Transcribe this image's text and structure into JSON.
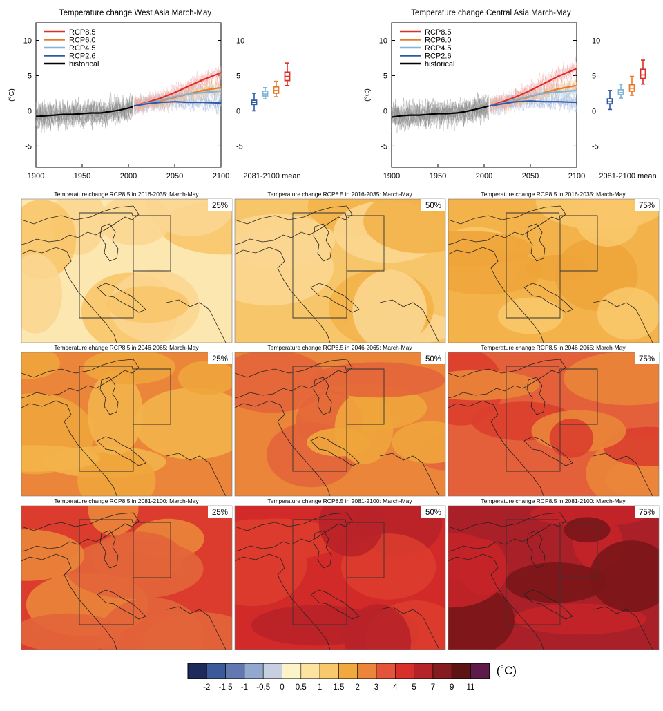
{
  "chart_data": [
    {
      "type": "line",
      "title": "Temperature change West Asia March-May",
      "ylabel": "(°C)",
      "xlim": [
        1900,
        2100
      ],
      "ylim": [
        -8,
        12.5
      ],
      "xticks": [
        "1900",
        "1950",
        "2000",
        "2050",
        "2100"
      ],
      "yticks": [
        "-5",
        "0",
        "5",
        "10"
      ],
      "legend": "top-left",
      "series": [
        {
          "name": "RCP8.5",
          "color": "#dc2d27",
          "x": [
            2006,
            2020,
            2035,
            2050,
            2065,
            2080,
            2100
          ],
          "values": [
            0.7,
            1.2,
            1.8,
            2.6,
            3.5,
            4.4,
            5.4
          ]
        },
        {
          "name": "RCP6.0",
          "color": "#e87b2a",
          "x": [
            2006,
            2020,
            2035,
            2050,
            2065,
            2080,
            2100
          ],
          "values": [
            0.7,
            1.0,
            1.4,
            1.9,
            2.4,
            2.9,
            3.3
          ]
        },
        {
          "name": "RCP4.5",
          "color": "#7eb3d9",
          "x": [
            2006,
            2020,
            2035,
            2050,
            2065,
            2080,
            2100
          ],
          "values": [
            0.7,
            1.1,
            1.5,
            2.0,
            2.4,
            2.6,
            2.8
          ]
        },
        {
          "name": "RCP2.6",
          "color": "#2e5aa6",
          "x": [
            2006,
            2020,
            2035,
            2050,
            2065,
            2080,
            2100
          ],
          "values": [
            0.7,
            1.0,
            1.2,
            1.3,
            1.2,
            1.2,
            1.1
          ]
        },
        {
          "name": "historical",
          "color": "#000000",
          "x": [
            1900,
            1910,
            1920,
            1930,
            1940,
            1950,
            1960,
            1970,
            1980,
            1990,
            2000,
            2005
          ],
          "values": [
            -0.8,
            -0.7,
            -0.6,
            -0.5,
            -0.5,
            -0.4,
            -0.3,
            -0.3,
            -0.1,
            0.1,
            0.4,
            0.6
          ]
        }
      ],
      "boxplot": {
        "label": "2081-2100 mean",
        "boxes": [
          {
            "name": "RCP2.6",
            "color": "#2e5aa6",
            "min": 0.0,
            "q1": 0.9,
            "median": 1.2,
            "q3": 1.5,
            "max": 2.5
          },
          {
            "name": "RCP4.5",
            "color": "#7eb3d9",
            "min": 1.7,
            "q1": 2.1,
            "median": 2.4,
            "q3": 2.8,
            "max": 3.3
          },
          {
            "name": "RCP6.0",
            "color": "#e87b2a",
            "min": 2.0,
            "q1": 2.5,
            "median": 2.9,
            "q3": 3.4,
            "max": 4.2
          },
          {
            "name": "RCP8.5",
            "color": "#dc2d27",
            "min": 3.6,
            "q1": 4.3,
            "median": 4.9,
            "q3": 5.5,
            "max": 6.8
          }
        ]
      }
    },
    {
      "type": "line",
      "title": "Temperature change Central Asia March-May",
      "ylabel": "(°C)",
      "xlim": [
        1900,
        2100
      ],
      "ylim": [
        -8,
        12.5
      ],
      "xticks": [
        "1900",
        "1950",
        "2000",
        "2050",
        "2100"
      ],
      "yticks": [
        "-5",
        "0",
        "5",
        "10"
      ],
      "legend": "top-left",
      "series": [
        {
          "name": "RCP8.5",
          "color": "#dc2d27",
          "x": [
            2006,
            2020,
            2035,
            2050,
            2065,
            2080,
            2100
          ],
          "values": [
            0.7,
            1.3,
            2.0,
            2.9,
            3.9,
            4.9,
            6.0
          ]
        },
        {
          "name": "RCP6.0",
          "color": "#e87b2a",
          "x": [
            2006,
            2020,
            2035,
            2050,
            2065,
            2080,
            2100
          ],
          "values": [
            0.7,
            1.0,
            1.5,
            2.0,
            2.6,
            3.1,
            3.6
          ]
        },
        {
          "name": "RCP4.5",
          "color": "#7eb3d9",
          "x": [
            2006,
            2020,
            2035,
            2050,
            2065,
            2080,
            2100
          ],
          "values": [
            0.7,
            1.1,
            1.6,
            2.1,
            2.5,
            2.7,
            2.9
          ]
        },
        {
          "name": "RCP2.6",
          "color": "#2e5aa6",
          "x": [
            2006,
            2020,
            2035,
            2050,
            2065,
            2080,
            2100
          ],
          "values": [
            0.7,
            1.0,
            1.3,
            1.4,
            1.3,
            1.3,
            1.2
          ]
        },
        {
          "name": "historical",
          "color": "#000000",
          "x": [
            1900,
            1910,
            1920,
            1930,
            1940,
            1950,
            1960,
            1970,
            1980,
            1990,
            2000,
            2005
          ],
          "values": [
            -0.9,
            -0.7,
            -0.6,
            -0.6,
            -0.5,
            -0.4,
            -0.4,
            -0.3,
            -0.1,
            0.2,
            0.5,
            0.7
          ]
        }
      ],
      "boxplot": {
        "label": "2081-2100 mean",
        "boxes": [
          {
            "name": "RCP2.6",
            "color": "#2e5aa6",
            "min": 0.2,
            "q1": 1.0,
            "median": 1.3,
            "q3": 1.7,
            "max": 2.9
          },
          {
            "name": "RCP4.5",
            "color": "#7eb3d9",
            "min": 1.8,
            "q1": 2.3,
            "median": 2.6,
            "q3": 3.0,
            "max": 3.8
          },
          {
            "name": "RCP6.0",
            "color": "#e87b2a",
            "min": 2.2,
            "q1": 2.8,
            "median": 3.2,
            "q3": 3.7,
            "max": 4.9
          },
          {
            "name": "RCP8.5",
            "color": "#dc2d27",
            "min": 3.8,
            "q1": 4.6,
            "median": 5.1,
            "q3": 5.9,
            "max": 7.2
          }
        ]
      }
    },
    {
      "type": "heatmap",
      "panels": [
        {
          "title": "Temperature change RCP8.5 in 2016-2035: March-May",
          "percentile": "25%",
          "dominant_bin": "1-1.5",
          "palette": [
            "#fde7b0",
            "#fbd690",
            "#f8c66a"
          ]
        },
        {
          "title": "Temperature change RCP8.5 in 2016-2035: March-May",
          "percentile": "50%",
          "dominant_bin": "1-1.5",
          "palette": [
            "#f8c66a",
            "#fbd690",
            "#f3b24a"
          ]
        },
        {
          "title": "Temperature change RCP8.5 in 2016-2035: March-May",
          "percentile": "75%",
          "dominant_bin": "1.5-2",
          "palette": [
            "#f3b24a",
            "#f8c66a",
            "#eea43a"
          ]
        },
        {
          "title": "Temperature change RCP8.5 in 2046-2065: March-May",
          "percentile": "25%",
          "dominant_bin": "2-3",
          "palette": [
            "#ea853a",
            "#f0a53c",
            "#f3b24a"
          ]
        },
        {
          "title": "Temperature change RCP8.5 in 2046-2065: March-May",
          "percentile": "50%",
          "dominant_bin": "2-3",
          "palette": [
            "#ea853a",
            "#e3653a",
            "#f0a53c"
          ]
        },
        {
          "title": "Temperature change RCP8.5 in 2046-2065: March-May",
          "percentile": "75%",
          "dominant_bin": "3-4",
          "palette": [
            "#e3603a",
            "#ea853a",
            "#dc3f2d"
          ]
        },
        {
          "title": "Temperature change RCP8.5 in 2081-2100: March-May",
          "percentile": "25%",
          "dominant_bin": "4-5",
          "palette": [
            "#db3c2d",
            "#e3653a",
            "#ea853a"
          ]
        },
        {
          "title": "Temperature change RCP8.5 in 2081-2100: March-May",
          "percentile": "50%",
          "dominant_bin": "5-7",
          "palette": [
            "#d22a28",
            "#b82228",
            "#db3c2d"
          ]
        },
        {
          "title": "Temperature change RCP8.5 in 2081-2100: March-May",
          "percentile": "75%",
          "dominant_bin": "7-9",
          "palette": [
            "#a92028",
            "#c42428",
            "#7a1618"
          ]
        }
      ],
      "colorbar": {
        "unit": "(˚C)",
        "labels": [
          "-2",
          "-1.5",
          "-1",
          "-0.5",
          "0",
          "0.5",
          "1",
          "1.5",
          "2",
          "3",
          "4",
          "5",
          "7",
          "9",
          "11"
        ],
        "colors": [
          "#1f2a5c",
          "#3c5a9a",
          "#6179b0",
          "#93a8cf",
          "#c7d0e0",
          "#fdf3c8",
          "#fde2a0",
          "#f8c86c",
          "#f1a93f",
          "#ea853a",
          "#e3553a",
          "#d7302b",
          "#b42328",
          "#851c1f",
          "#5e1414",
          "#5d1a4a"
        ]
      }
    }
  ]
}
